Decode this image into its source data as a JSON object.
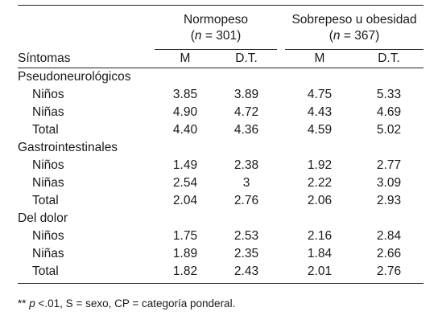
{
  "groups": {
    "normal": {
      "title": "Normopeso",
      "n_prefix": "(",
      "n_var": "n",
      "n_rest": " = 301)"
    },
    "over": {
      "title": "Sobrepeso u obesidad",
      "n_prefix": "(",
      "n_var": "n",
      "n_rest": " = 367)"
    }
  },
  "columns": {
    "symptoms": "Síntomas",
    "m1": "M",
    "dt1": "D.T.",
    "m2": "M",
    "dt2": "D.T."
  },
  "categories": [
    {
      "name": "Pseudoneurológicos",
      "rows": [
        {
          "label": "Niños",
          "m1": "3.85",
          "dt1": "3.89",
          "m2": "4.75",
          "dt2": "5.33"
        },
        {
          "label": "Niñas",
          "m1": "4.90",
          "dt1": "4.72",
          "m2": "4.43",
          "dt2": "4.69"
        },
        {
          "label": "Total",
          "m1": "4.40",
          "dt1": "4.36",
          "m2": "4.59",
          "dt2": "5.02"
        }
      ]
    },
    {
      "name": "Gastrointestinales",
      "rows": [
        {
          "label": "Niños",
          "m1": "1.49",
          "dt1": "2.38",
          "m2": "1.92",
          "dt2": "2.77"
        },
        {
          "label": "Niñas",
          "m1": "2.54",
          "dt1": "3",
          "m2": "2.22",
          "dt2": "3.09"
        },
        {
          "label": "Total",
          "m1": "2.04",
          "dt1": "2.76",
          "m2": "2.06",
          "dt2": "2.93"
        }
      ]
    },
    {
      "name": "Del dolor",
      "rows": [
        {
          "label": "Niños",
          "m1": "1.75",
          "dt1": "2.53",
          "m2": "2.16",
          "dt2": "2.84"
        },
        {
          "label": "Niñas",
          "m1": "1.89",
          "dt1": "2.35",
          "m2": "1.84",
          "dt2": "2.66"
        },
        {
          "label": "Total",
          "m1": "1.82",
          "dt1": "2.43",
          "m2": "2.01",
          "dt2": "2.76"
        }
      ]
    }
  ],
  "footnote": {
    "stars": "** ",
    "p": "p",
    "rest": " <.01, S = sexo, CP = categoría ponderal."
  }
}
